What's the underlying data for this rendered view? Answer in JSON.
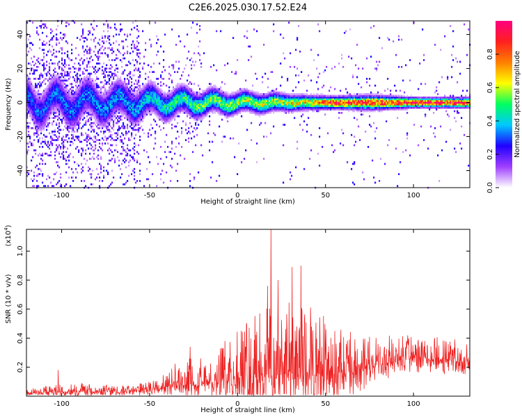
{
  "title": "C2E6.2025.030.17.52.E24",
  "chart_data": [
    {
      "type": "heatmap",
      "xlabel": "Height of straight line (km)",
      "ylabel": "Frequency (Hz)",
      "xlim": [
        -120,
        132
      ],
      "ylim": [
        -50,
        48
      ],
      "x_ticks": [
        "-100",
        "-50",
        "0",
        "50",
        "100"
      ],
      "y_ticks": [
        "-40",
        "-20",
        "0",
        "20",
        "40"
      ],
      "colorbar": {
        "label": "Normalized spectral amplitude",
        "range": [
          0,
          1
        ],
        "ticks": [
          "0.0",
          "0.2",
          "0.4",
          "0.6",
          "0.8"
        ],
        "colors": [
          "#ffffff",
          "#a040ff",
          "#2000ff",
          "#00c8ff",
          "#00ff60",
          "#ffff00",
          "#ff8000",
          "#ff2020",
          "#ff0080"
        ]
      },
      "band_profile": [
        {
          "x": -120,
          "half_width_hz": 9,
          "peak_amp": 0.3
        },
        {
          "x": -90,
          "half_width_hz": 9,
          "peak_amp": 0.33
        },
        {
          "x": -60,
          "half_width_hz": 8,
          "peak_amp": 0.38
        },
        {
          "x": -45,
          "half_width_hz": 7,
          "peak_amp": 0.45
        },
        {
          "x": -20,
          "half_width_hz": 6,
          "peak_amp": 0.55
        },
        {
          "x": 0,
          "half_width_hz": 5,
          "peak_amp": 0.6
        },
        {
          "x": 20,
          "half_width_hz": 4.5,
          "peak_amp": 0.62
        },
        {
          "x": 40,
          "half_width_hz": 3.5,
          "peak_amp": 0.7
        },
        {
          "x": 55,
          "half_width_hz": 3,
          "peak_amp": 0.92
        },
        {
          "x": 75,
          "half_width_hz": 3.5,
          "peak_amp": 0.88
        },
        {
          "x": 100,
          "half_width_hz": 2.5,
          "peak_amp": 0.95
        },
        {
          "x": 132,
          "half_width_hz": 2.5,
          "peak_amp": 0.93
        }
      ]
    },
    {
      "type": "line",
      "xlabel": "Height of straight line (km)",
      "ylabel": "SNR (10 * v/v)",
      "scale_label": "(x10",
      "scale_exponent": "4",
      "scale_close": ")",
      "xlim": [
        -120,
        132
      ],
      "ylim": [
        0,
        1.15
      ],
      "x_ticks": [
        "-100",
        "-50",
        "0",
        "50",
        "100"
      ],
      "y_ticks": [
        "0.2",
        "0.4",
        "0.6",
        "0.8",
        "1.0"
      ],
      "color": "#ee2222",
      "envelope": [
        {
          "x": -120,
          "base": 0.02,
          "amp": 0.03
        },
        {
          "x": -100,
          "base": 0.03,
          "amp": 0.06
        },
        {
          "x": -80,
          "base": 0.03,
          "amp": 0.06
        },
        {
          "x": -60,
          "base": 0.03,
          "amp": 0.04
        },
        {
          "x": -45,
          "base": 0.05,
          "amp": 0.08
        },
        {
          "x": -35,
          "base": 0.08,
          "amp": 0.15
        },
        {
          "x": -25,
          "base": 0.08,
          "amp": 0.2
        },
        {
          "x": -20,
          "base": 0.08,
          "amp": 0.12
        },
        {
          "x": -10,
          "base": 0.1,
          "amp": 0.25
        },
        {
          "x": 0,
          "base": 0.12,
          "amp": 0.35
        },
        {
          "x": 15,
          "base": 0.15,
          "amp": 0.45
        },
        {
          "x": 30,
          "base": 0.15,
          "amp": 0.55
        },
        {
          "x": 45,
          "base": 0.15,
          "amp": 0.45
        },
        {
          "x": 60,
          "base": 0.15,
          "amp": 0.3
        },
        {
          "x": 80,
          "base": 0.22,
          "amp": 0.2
        },
        {
          "x": 100,
          "base": 0.26,
          "amp": 0.16
        },
        {
          "x": 132,
          "base": 0.24,
          "amp": 0.16
        }
      ],
      "notable_peaks": [
        {
          "x": 19,
          "y": 1.15
        },
        {
          "x": 31,
          "y": 0.89
        },
        {
          "x": 36,
          "y": 0.9
        },
        {
          "x": 17,
          "y": 0.76
        },
        {
          "x": 23,
          "y": 0.8
        },
        {
          "x": -27,
          "y": 0.34
        },
        {
          "x": -21,
          "y": 0.26
        },
        {
          "x": -102,
          "y": 0.18
        }
      ]
    }
  ]
}
